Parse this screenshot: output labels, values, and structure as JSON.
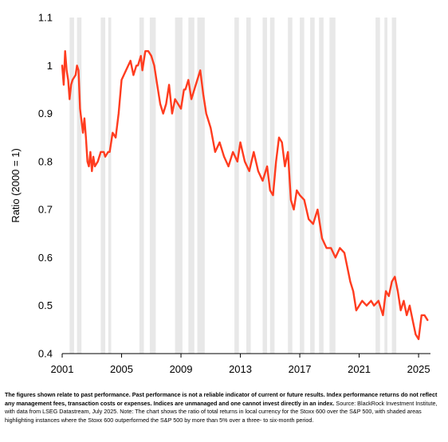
{
  "chart_data": {
    "type": "line",
    "title": "",
    "xlabel": "",
    "ylabel": "Ratio (2000 = 1)",
    "xlim": [
      2001,
      2025.8
    ],
    "ylim": [
      0.4,
      1.1
    ],
    "x_ticks": [
      2001,
      2005,
      2009,
      2013,
      2017,
      2021,
      2025
    ],
    "x_tick_labels": [
      "2001",
      "2005",
      "2009",
      "2013",
      "2017",
      "2021",
      "2025"
    ],
    "y_ticks": [
      0.4,
      0.5,
      0.6,
      0.7,
      0.8,
      0.9,
      1.0,
      1.1
    ],
    "y_tick_labels": [
      "0.4",
      "0.5",
      "0.6",
      "0.7",
      "0.8",
      "0.9",
      "1",
      "1.1"
    ],
    "grid": false,
    "line_color": "#ff3c1f",
    "shade_color": "#cccccc",
    "series": [
      {
        "name": "",
        "x": [
          2001.0,
          2001.1,
          2001.2,
          2001.3,
          2001.4,
          2001.5,
          2001.6,
          2001.7,
          2001.9,
          2002.0,
          2002.1,
          2002.2,
          2002.4,
          2002.5,
          2002.6,
          2002.7,
          2002.8,
          2002.9,
          2003.0,
          2003.1,
          2003.2,
          2003.4,
          2003.6,
          2003.8,
          2003.9,
          2004.1,
          2004.2,
          2004.4,
          2004.6,
          2004.8,
          2005.0,
          2005.3,
          2005.6,
          2005.8,
          2006.0,
          2006.1,
          2006.3,
          2006.4,
          2006.6,
          2006.8,
          2007.0,
          2007.2,
          2007.4,
          2007.6,
          2007.8,
          2008.0,
          2008.2,
          2008.4,
          2008.6,
          2008.8,
          2009.0,
          2009.1,
          2009.2,
          2009.3,
          2009.5,
          2009.7,
          2009.9,
          2010.1,
          2010.3,
          2010.5,
          2010.7,
          2010.8,
          2011.0,
          2011.3,
          2011.6,
          2011.9,
          2012.2,
          2012.5,
          2012.8,
          2013.0,
          2013.3,
          2013.6,
          2013.9,
          2014.2,
          2014.5,
          2014.8,
          2015.0,
          2015.2,
          2015.4,
          2015.6,
          2015.8,
          2016.0,
          2016.2,
          2016.4,
          2016.6,
          2016.8,
          2017.0,
          2017.3,
          2017.6,
          2017.9,
          2018.2,
          2018.5,
          2018.8,
          2019.1,
          2019.4,
          2019.7,
          2020.0,
          2020.2,
          2020.4,
          2020.6,
          2020.8,
          2021.0,
          2021.2,
          2021.5,
          2021.8,
          2022.0,
          2022.3,
          2022.6,
          2022.8,
          2023.0,
          2023.2,
          2023.4,
          2023.6,
          2023.8,
          2024.0,
          2024.2,
          2024.4,
          2024.6,
          2024.8,
          2025.0,
          2025.2,
          2025.4,
          2025.6
        ],
        "values": [
          1.0,
          0.96,
          1.03,
          0.99,
          0.97,
          0.93,
          0.96,
          0.97,
          0.98,
          1.0,
          0.99,
          0.91,
          0.86,
          0.89,
          0.85,
          0.8,
          0.79,
          0.82,
          0.78,
          0.81,
          0.79,
          0.8,
          0.82,
          0.82,
          0.81,
          0.82,
          0.82,
          0.86,
          0.85,
          0.9,
          0.97,
          0.99,
          1.01,
          0.98,
          1.0,
          1.0,
          1.02,
          0.99,
          1.03,
          1.03,
          1.02,
          1.0,
          0.96,
          0.92,
          0.9,
          0.92,
          0.96,
          0.9,
          0.93,
          0.92,
          0.91,
          0.93,
          0.95,
          0.95,
          0.97,
          0.93,
          0.95,
          0.97,
          0.99,
          0.94,
          0.9,
          0.89,
          0.87,
          0.82,
          0.84,
          0.81,
          0.79,
          0.82,
          0.8,
          0.84,
          0.8,
          0.78,
          0.82,
          0.78,
          0.76,
          0.79,
          0.74,
          0.73,
          0.8,
          0.85,
          0.84,
          0.79,
          0.82,
          0.72,
          0.7,
          0.74,
          0.73,
          0.72,
          0.68,
          0.67,
          0.7,
          0.64,
          0.62,
          0.62,
          0.6,
          0.62,
          0.61,
          0.58,
          0.55,
          0.53,
          0.49,
          0.5,
          0.51,
          0.5,
          0.51,
          0.5,
          0.51,
          0.48,
          0.53,
          0.52,
          0.55,
          0.56,
          0.53,
          0.49,
          0.51,
          0.48,
          0.5,
          0.47,
          0.44,
          0.43,
          0.48,
          0.48,
          0.47
        ]
      }
    ],
    "shaded_periods": [
      [
        2001.5,
        2001.8
      ],
      [
        2002.0,
        2002.3
      ],
      [
        2003.6,
        2003.9
      ],
      [
        2004.1,
        2004.3
      ],
      [
        2006.2,
        2006.5
      ],
      [
        2006.9,
        2007.3
      ],
      [
        2008.6,
        2009.1
      ],
      [
        2009.5,
        2009.9
      ],
      [
        2010.1,
        2010.6
      ],
      [
        2012.6,
        2012.9
      ],
      [
        2013.4,
        2013.7
      ],
      [
        2014.5,
        2014.8
      ],
      [
        2015.0,
        2015.3
      ],
      [
        2016.2,
        2016.5
      ],
      [
        2017.0,
        2017.3
      ],
      [
        2017.7,
        2018.0
      ],
      [
        2018.3,
        2018.6
      ],
      [
        2019.0,
        2019.4
      ],
      [
        2022.1,
        2022.4
      ],
      [
        2022.7,
        2022.9
      ],
      [
        2023.2,
        2023.5
      ]
    ]
  },
  "notes": {
    "bold": "The figures shown relate to past performance. Past performance is not a reliable indicator of current or future results. Index performance returns do not reflect any management fees, transaction costs or expenses. Indices are unmanaged and one cannot invest directly in an index.",
    "regular": " Source: BlackRock Investment Institute, with data from LSEG Datastream, July 2025. Note: The chart shows the ratio of total returns in local currency for the Stoxx 600 over the S&P 500, with shaded areas highlighting instances where the Stoxx 600 outperformed the S&P 500 by more than 5% over a three- to six-month period."
  }
}
